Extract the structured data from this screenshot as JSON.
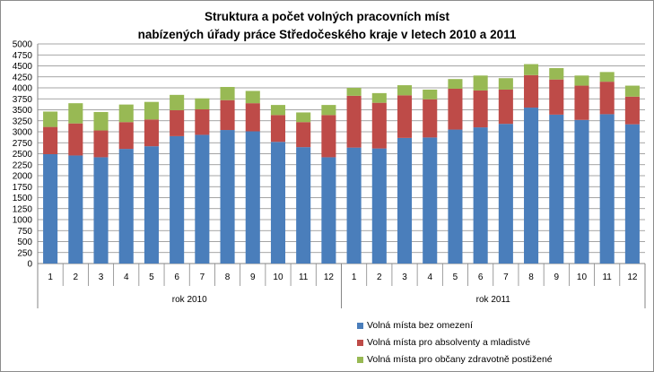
{
  "chart_data": {
    "type": "bar",
    "stacked": true,
    "title_line1": "Struktura a počet volných pracovních míst",
    "title_line2": "nabízených úřady práce Středočeského kraje v letech 2010 a 2011",
    "ylim": [
      0,
      5000
    ],
    "yticks": [
      "0",
      "250",
      "500",
      "750",
      "1000",
      "1250",
      "1500",
      "1750",
      "2000",
      "2250",
      "2500",
      "2750",
      "3000",
      "3250",
      "3500",
      "3750",
      "4000",
      "4250",
      "4500",
      "4750",
      "5000"
    ],
    "grid": true,
    "legend_position": "bottom-right",
    "groups": [
      {
        "label": "rok 2010",
        "categories": [
          "1",
          "2",
          "3",
          "4",
          "5",
          "6",
          "7",
          "8",
          "9",
          "10",
          "11",
          "12"
        ]
      },
      {
        "label": "rok 2011",
        "categories": [
          "1",
          "2",
          "3",
          "4",
          "5",
          "6",
          "7",
          "8",
          "9",
          "10",
          "11",
          "12"
        ]
      }
    ],
    "series": [
      {
        "name": "Volná místa bez omezení",
        "color": "#4a7ebb",
        "values": [
          2490,
          2460,
          2420,
          2610,
          2670,
          2900,
          2930,
          3040,
          3010,
          2770,
          2650,
          2420,
          2640,
          2620,
          2860,
          2870,
          3050,
          3100,
          3180,
          3550,
          3390,
          3270,
          3400,
          3170
        ]
      },
      {
        "name": "Volná místa pro absolventy a mladistvé",
        "color": "#be4b48",
        "values": [
          620,
          730,
          610,
          610,
          610,
          590,
          580,
          680,
          640,
          610,
          570,
          960,
          1180,
          1040,
          970,
          870,
          930,
          840,
          780,
          740,
          800,
          780,
          740,
          630
        ]
      },
      {
        "name": "Volná místa pro občany zdravotně postižené",
        "color": "#98b954",
        "values": [
          350,
          460,
          420,
          400,
          400,
          350,
          250,
          300,
          280,
          230,
          220,
          230,
          180,
          220,
          230,
          220,
          220,
          340,
          260,
          250,
          260,
          230,
          220,
          250
        ]
      }
    ]
  }
}
